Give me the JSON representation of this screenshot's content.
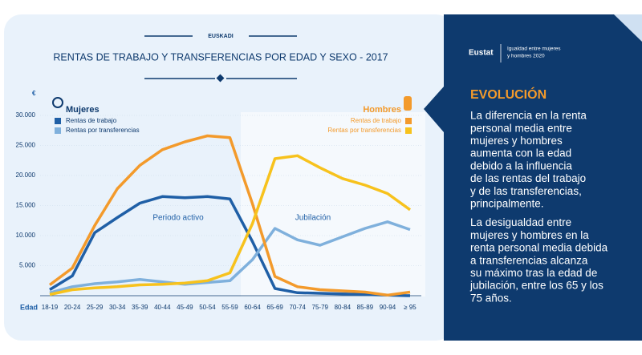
{
  "chart_data": {
    "type": "line",
    "kicker": "EUSKADI",
    "title": "RENTAS DE TRABAJO Y TRANSFERENCIAS POR EDAD Y SEXO - 2017",
    "y_unit": "€",
    "x_label": "Edad",
    "legend_titles": [
      "Mujeres",
      "Hombres"
    ],
    "categories": [
      "18-19",
      "20-24",
      "25-29",
      "30-34",
      "35-39",
      "40-44",
      "45-49",
      "50-54",
      "55-59",
      "60-64",
      "65-69",
      "70-74",
      "75-79",
      "80-84",
      "85-89",
      "90-94",
      "≥ 95"
    ],
    "series": [
      {
        "name": "Rentas de trabajo",
        "color": "#1f5fa6",
        "values": [
          1000,
          3300,
          10500,
          13000,
          15400,
          16500,
          16300,
          16500,
          16100,
          9000,
          1200,
          500,
          400,
          300,
          200,
          100,
          0
        ]
      },
      {
        "name": "Rentas por transferencias",
        "color": "#7fb0dc",
        "values": [
          500,
          1500,
          2000,
          2300,
          2700,
          2300,
          1900,
          2200,
          2500,
          6000,
          11200,
          9300,
          8400,
          9800,
          11200,
          12300,
          11000
        ]
      },
      {
        "name": "Rentas de trabajo",
        "color": "#f39a2b",
        "values": [
          1800,
          4600,
          11700,
          17800,
          21700,
          24300,
          25600,
          26600,
          26300,
          15300,
          3200,
          1500,
          1000,
          800,
          600,
          100,
          600
        ]
      },
      {
        "name": "Rentas por transferencias",
        "color": "#f7c21d",
        "values": [
          200,
          1000,
          1300,
          1500,
          1800,
          1900,
          2100,
          2500,
          3800,
          12000,
          22800,
          23300,
          21300,
          19500,
          18400,
          17000,
          14300
        ]
      }
    ],
    "annotations": [
      "Periodo activo",
      "Jubilación"
    ],
    "ylim": [
      0,
      30000
    ],
    "yticks": [
      {
        "value": 5000,
        "label": "5.000"
      },
      {
        "value": 10000,
        "label": "10.000"
      },
      {
        "value": 15000,
        "label": "15.000"
      },
      {
        "value": 20000,
        "label": "20.000"
      },
      {
        "value": 25000,
        "label": "25.000"
      },
      {
        "value": 30000,
        "label": "30.000"
      }
    ],
    "grid": true
  },
  "panel": {
    "logo": "Eustat",
    "tagline": [
      "Igualdad entre mujeres",
      "y hombres 2020"
    ],
    "heading": "EVOLUCIÓN",
    "paragraphs": [
      [
        "La diferencia en la renta",
        "personal media entre",
        "mujeres y hombres",
        "aumenta con la edad",
        "debido a la influencia",
        "de las rentas del trabajo",
        "y de las transferencias,",
        "principalmente."
      ],
      [
        "La desigualdad entre",
        "mujeres y hombres en la",
        "renta personal media debida",
        "a transferencias  alcanza",
        "su máximo tras la edad de",
        "jubilación, entre los 65 y los",
        "75 años."
      ]
    ]
  }
}
